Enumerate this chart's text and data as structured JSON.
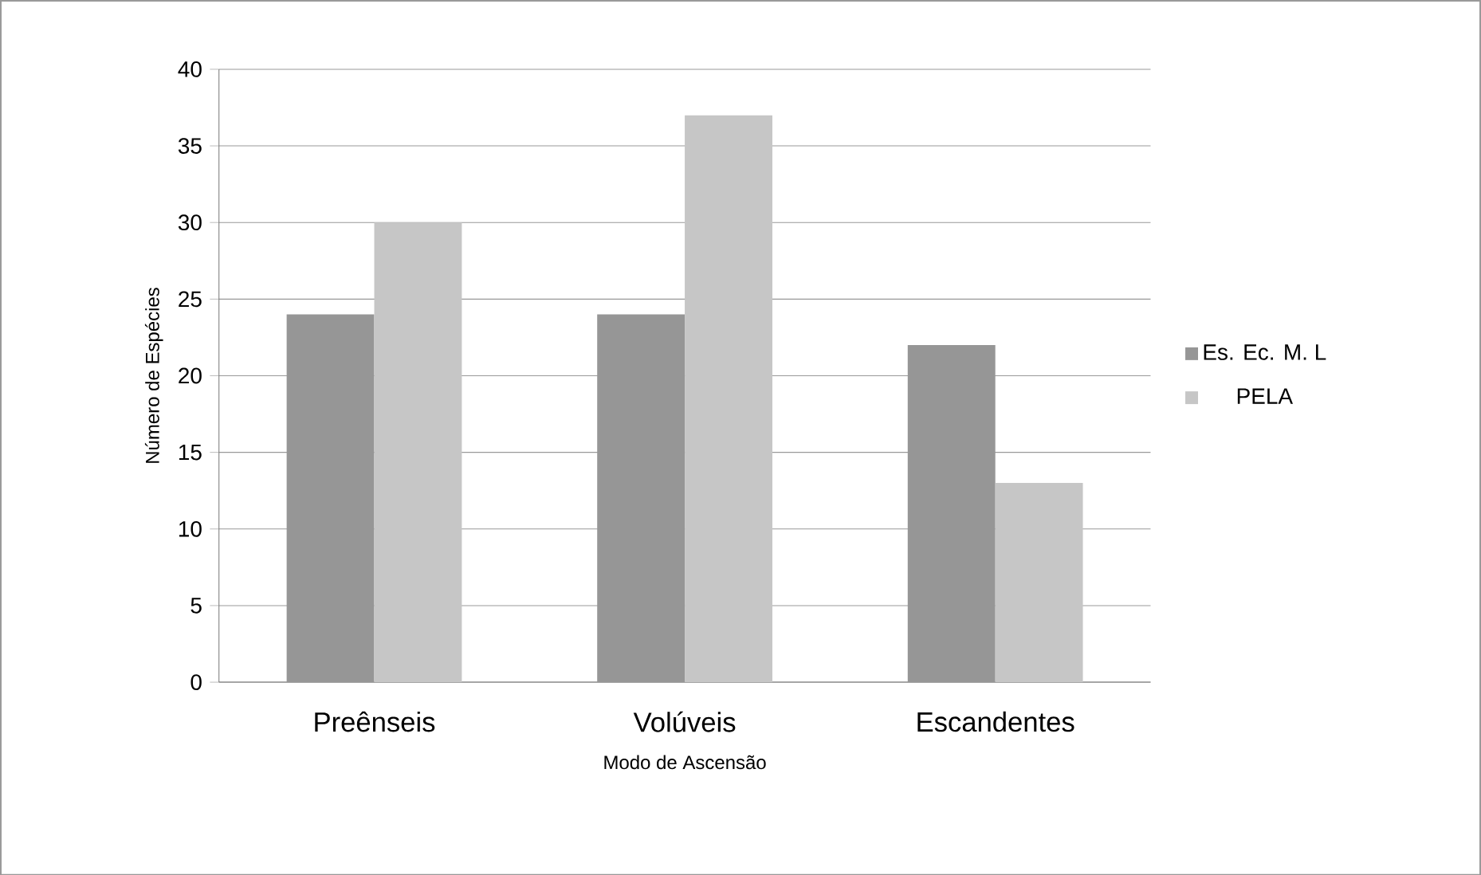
{
  "chart_data": {
    "type": "bar",
    "xlabel": "Modo de Ascensão",
    "ylabel": "Número de Espécies",
    "categories": [
      "Preênseis",
      "Volúveis",
      "Escandentes"
    ],
    "series": [
      {
        "name": "Es. Ec. M. L",
        "color": "#969696",
        "values": [
          24,
          24,
          22
        ]
      },
      {
        "name": "PELA",
        "color": "#c6c6c6",
        "values": [
          30,
          37,
          13
        ]
      }
    ],
    "ylim": [
      0,
      40
    ],
    "yticks": [
      0,
      5,
      10,
      15,
      20,
      25,
      30,
      35,
      40
    ],
    "grid": "y",
    "legend": "right"
  }
}
